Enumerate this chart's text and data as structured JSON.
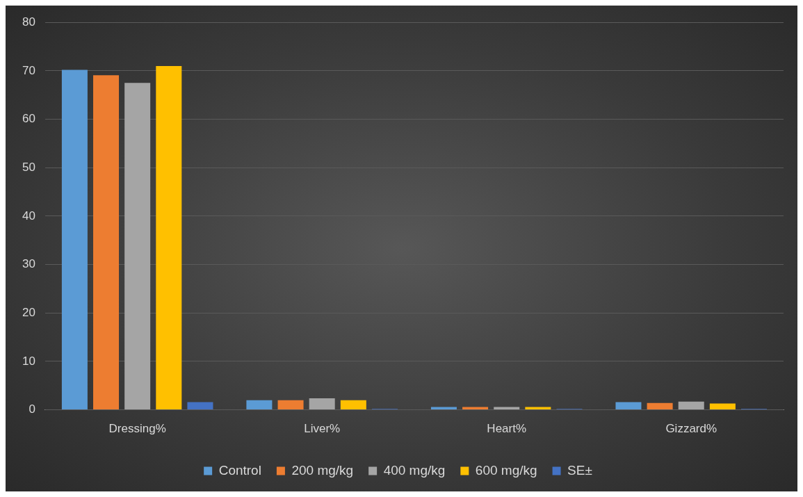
{
  "chart_data": {
    "type": "bar",
    "categories": [
      "Dressing%",
      "Liver%",
      "Heart%",
      "Gizzard%"
    ],
    "series": [
      {
        "name": "Control",
        "color": "#5b9bd5",
        "values": [
          70.2,
          2.0,
          0.6,
          1.6
        ]
      },
      {
        "name": "200 mg/kg",
        "color": "#ed7d31",
        "values": [
          69.1,
          2.0,
          0.6,
          1.4
        ]
      },
      {
        "name": "400 mg/kg",
        "color": "#a5a5a5",
        "values": [
          67.5,
          2.4,
          0.6,
          1.7
        ]
      },
      {
        "name": "600 mg/kg",
        "color": "#ffc000",
        "values": [
          71.0,
          2.0,
          0.6,
          1.3
        ]
      },
      {
        "name": "SE±",
        "color": "#4472c4",
        "values": [
          1.6,
          0.2,
          0.2,
          0.2
        ]
      }
    ],
    "ylim": [
      0,
      80
    ],
    "yticks": [
      0,
      10,
      20,
      30,
      40,
      50,
      60,
      70,
      80
    ],
    "grid": "y",
    "legend": "bottom"
  }
}
